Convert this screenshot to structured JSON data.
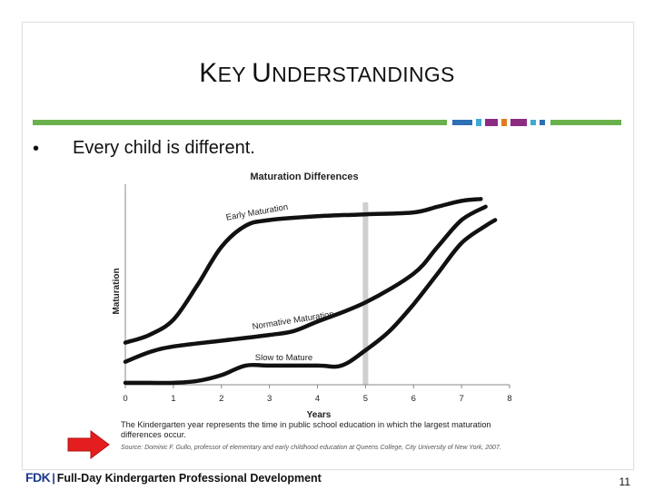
{
  "slide": {
    "title": "Key Understandings",
    "bullet_symbol": "•",
    "bullet_text": "Every child is different.",
    "page_number": "11",
    "header_bar_colors": [
      "#6ab04c",
      "#2e6fb5",
      "#8b2c82",
      "#e07b1f",
      "#3fa9d6"
    ]
  },
  "chart_data": {
    "type": "line",
    "title": "Maturation Differences",
    "xlabel": "Years",
    "ylabel": "Maturation",
    "x_ticks": [
      "0",
      "1",
      "2",
      "3",
      "4",
      "5",
      "6",
      "7",
      "8"
    ],
    "xlim": [
      0,
      8
    ],
    "ylim": [
      0,
      100
    ],
    "highlight_x": 5,
    "series": [
      {
        "name": "Early Maturation",
        "points": [
          [
            0,
            22
          ],
          [
            0.5,
            26
          ],
          [
            1,
            34
          ],
          [
            1.5,
            52
          ],
          [
            2,
            72
          ],
          [
            2.5,
            83
          ],
          [
            3,
            86
          ],
          [
            4,
            88
          ],
          [
            5,
            89
          ],
          [
            6,
            90
          ],
          [
            6.5,
            93
          ],
          [
            7,
            96
          ],
          [
            7.4,
            97
          ]
        ]
      },
      {
        "name": "Normative Maturation",
        "points": [
          [
            0,
            12
          ],
          [
            0.5,
            17
          ],
          [
            1,
            20
          ],
          [
            2,
            23
          ],
          [
            3,
            26
          ],
          [
            3.5,
            28
          ],
          [
            4,
            33
          ],
          [
            5,
            43
          ],
          [
            6,
            58
          ],
          [
            6.5,
            72
          ],
          [
            7,
            86
          ],
          [
            7.5,
            93
          ]
        ]
      },
      {
        "name": "Slow to Mature",
        "points": [
          [
            0,
            1
          ],
          [
            0.5,
            1
          ],
          [
            1,
            1
          ],
          [
            1.5,
            2
          ],
          [
            2,
            5
          ],
          [
            2.5,
            10
          ],
          [
            3,
            10
          ],
          [
            4,
            10
          ],
          [
            4.5,
            10
          ],
          [
            5,
            18
          ],
          [
            5.5,
            28
          ],
          [
            6,
            42
          ],
          [
            6.5,
            58
          ],
          [
            7,
            74
          ],
          [
            7.5,
            83
          ],
          [
            7.7,
            86
          ]
        ]
      }
    ],
    "caption": "The Kindergarten year represents the time in public school education in which the largest maturation differences occur.",
    "source": "Source: Dominic F. Gullo, professor of elementary and early childhood education at Queens College, City University of New York, 2007."
  },
  "footer": {
    "logo": "FDK",
    "separator": "|",
    "text": "Full-Day Kindergarten Professional Development"
  }
}
